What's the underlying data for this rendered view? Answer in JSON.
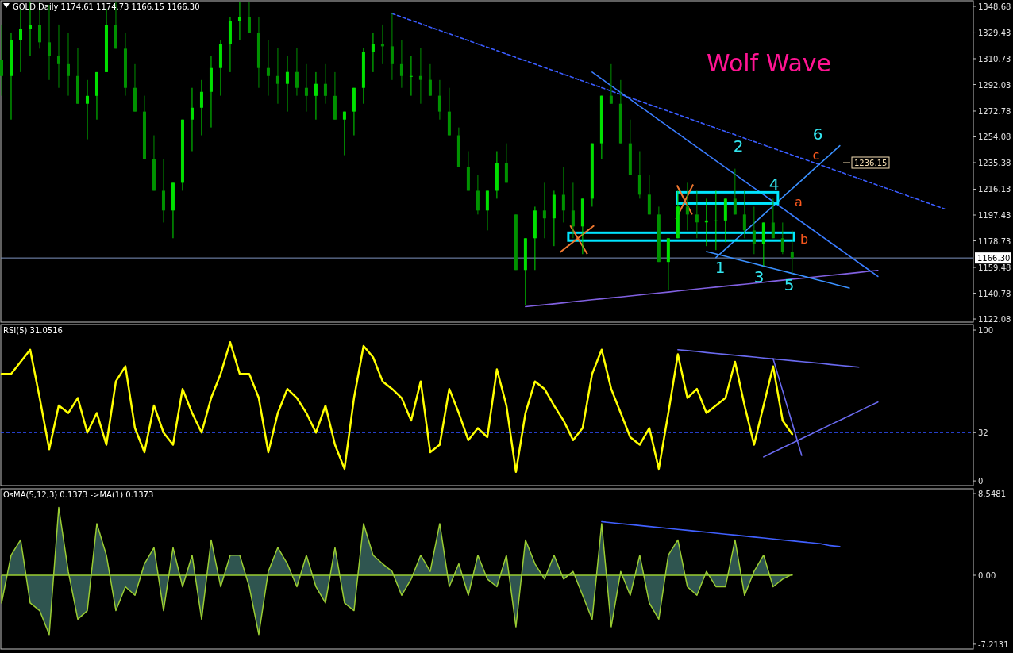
{
  "chart_data": [
    {
      "type": "candlestick",
      "title": "GOLD,Daily  1174.61 1174.73 1166.15 1166.30",
      "colors": [
        "#009200",
        "#00e000",
        "#00e000",
        "#00e000",
        "#009200",
        "#009200",
        "#009200",
        "#009200",
        "#009200",
        "#00e000",
        "#00e000",
        "#00e000",
        "#009200",
        "#009200",
        "#009200",
        "#009200",
        "#009200",
        "#009200",
        "#00e000",
        "#00e000",
        "#00e000",
        "#00e000",
        "#00e000",
        "#00e000",
        "#00e000",
        "#00e000",
        "#009200",
        "#009200",
        "#009200",
        "#009200",
        "#00e000",
        "#009200",
        "#009200",
        "#00e000",
        "#009200",
        "#009200",
        "#00e000",
        "#00e000",
        "#00e000",
        "#00e000",
        "#009200",
        "#009200",
        "#009200",
        "#00e000",
        "#009200",
        "#009200",
        "#009200",
        "#009200",
        "#009200",
        "#009200",
        "#009200",
        "#00e000",
        "#00e000",
        "#009200",
        "#009200",
        "#00e000",
        "#00e000",
        "#009200",
        "#00e000",
        "#009200",
        "#009200",
        "#00e000",
        "#00e000",
        "#00e000",
        "#009200",
        "#009200",
        "#009200",
        "#009200",
        "#009200",
        "#009200",
        "#00e000",
        "#00e000",
        "#009200",
        "#009200",
        "#00e000",
        "#00e000",
        "#00e000",
        "#009200",
        "#009200",
        "#009200",
        "#00e000",
        "#009200",
        "#009200",
        "#009200",
        null,
        null,
        null,
        null,
        null,
        null,
        null,
        null,
        null,
        null,
        null,
        null,
        null,
        null,
        null,
        null
      ],
      "tick_labels": "y",
      "ylim": [
        1119.8,
        1352.7
      ],
      "yticks": [
        1122.08,
        1140.78,
        1159.48,
        1178.73,
        1197.43,
        1216.13,
        1235.38,
        1254.08,
        1272.78,
        1292.03,
        1310.73,
        1329.43,
        1348.68
      ],
      "categories": [
        null,
        null,
        null,
        null,
        null,
        null,
        null,
        null,
        null,
        null,
        null,
        null,
        null,
        null,
        null,
        null,
        null,
        null,
        null,
        null,
        null,
        null,
        null,
        null,
        null,
        null,
        null,
        null,
        null,
        null,
        null,
        null,
        null,
        null,
        null,
        null,
        null,
        null,
        null,
        null,
        null,
        null,
        null,
        null,
        null,
        null,
        null,
        null,
        null,
        null,
        null,
        null,
        null,
        null,
        null,
        null,
        null,
        null,
        null,
        null,
        null,
        null,
        null,
        null,
        null,
        null,
        null,
        null,
        null,
        null,
        null,
        null,
        null,
        null,
        null,
        null,
        null,
        null,
        null,
        null,
        null,
        null,
        null,
        null,
        null,
        null,
        null,
        null,
        null,
        null,
        null,
        null,
        null,
        null,
        null,
        null,
        null,
        null,
        null,
        null
      ],
      "ohlc": [
        [
          1310,
          1335.5,
          1283.9,
          1298.2
        ],
        [
          1298.2,
          1329.7,
          1266.6,
          1324
        ],
        [
          1324,
          1347,
          1301,
          1332.3
        ],
        [
          1332.3,
          1352,
          1312.5,
          1335
        ],
        [
          1335,
          1352,
          1318,
          1322.6
        ],
        [
          1322.6,
          1349.8,
          1295.3,
          1312.6
        ],
        [
          1312.6,
          1335.5,
          1289.6,
          1306.8
        ],
        [
          1306.8,
          1329.7,
          1283.9,
          1298.2
        ],
        [
          1298.2,
          1318.3,
          1278.1,
          1278.1
        ],
        [
          1278.1,
          1295.3,
          1252.3,
          1283.8
        ],
        [
          1283.8,
          1301,
          1266.6,
          1301
        ],
        [
          1301,
          1347,
          1301,
          1335
        ],
        [
          1335,
          1352,
          1318,
          1318
        ],
        [
          1318,
          1329.7,
          1283.9,
          1289.6
        ],
        [
          1289.6,
          1306.8,
          1272.4,
          1272.4
        ],
        [
          1272.4,
          1283.9,
          1238,
          1238
        ],
        [
          1238,
          1255.2,
          1215,
          1215
        ],
        [
          1215,
          1238,
          1192,
          1200.7
        ],
        [
          1200.7,
          1220.8,
          1180.6,
          1220.8
        ],
        [
          1220.8,
          1266.6,
          1215,
          1266.6
        ],
        [
          1266.6,
          1289.6,
          1243.7,
          1275.2
        ],
        [
          1275.2,
          1295.3,
          1255.2,
          1286.7
        ],
        [
          1286.7,
          1312.5,
          1260.9,
          1304
        ],
        [
          1304,
          1324,
          1283.9,
          1321.1
        ],
        [
          1321.1,
          1341.2,
          1301,
          1338
        ],
        [
          1338,
          1352,
          1324,
          1340.9
        ],
        [
          1340.9,
          1352,
          1329.7,
          1329.7
        ],
        [
          1329.7,
          1341.2,
          1289.6,
          1304
        ],
        [
          1304,
          1324,
          1283.9,
          1298.2
        ],
        [
          1298.2,
          1318.3,
          1278.1,
          1292.5
        ],
        [
          1292.5,
          1312.5,
          1272.4,
          1301.1
        ],
        [
          1301.1,
          1318.3,
          1283.9,
          1289.6
        ],
        [
          1289.6,
          1306.8,
          1272.4,
          1283.8
        ],
        [
          1283.8,
          1301,
          1266.6,
          1292.5
        ],
        [
          1292.5,
          1306.8,
          1278.1,
          1283.8
        ],
        [
          1283.8,
          1301,
          1266.6,
          1266.6
        ],
        [
          1266.6,
          1272.4,
          1240.8,
          1272.4
        ],
        [
          1272.4,
          1289.6,
          1255.2,
          1289.6
        ],
        [
          1289.6,
          1318.3,
          1278.1,
          1315.4
        ],
        [
          1315.4,
          1329.7,
          1301,
          1321.2
        ],
        [
          1321.2,
          1335.5,
          1306.8,
          1319.7
        ],
        [
          1319.7,
          1344.1,
          1295.3,
          1306.8
        ],
        [
          1306.8,
          1324,
          1289.6,
          1298.2
        ],
        [
          1298.2,
          1312.5,
          1283.9,
          1298.2
        ],
        [
          1298.2,
          1318.3,
          1278.1,
          1295.4
        ],
        [
          1295.4,
          1306.8,
          1283.9,
          1283.9
        ],
        [
          1283.9,
          1295.3,
          1266.6,
          1272.4
        ],
        [
          1272.4,
          1289.6,
          1255.2,
          1255.2
        ],
        [
          1255.2,
          1260.9,
          1232.2,
          1232.2
        ],
        [
          1232.2,
          1243.7,
          1215,
          1215
        ],
        [
          1215,
          1226.5,
          1197.8,
          1200.7
        ],
        [
          1200.7,
          1215,
          1186.3,
          1215
        ],
        [
          1215,
          1243.7,
          1209.3,
          1235.1
        ],
        [
          1235.1,
          1249.4,
          1220.8,
          1220.8
        ],
        [
          1197.8,
          1197.8,
          1157.6,
          1157.6
        ],
        [
          1157.6,
          1180.6,
          1131.8,
          1180.6
        ],
        [
          1180.6,
          1203.5,
          1157.6,
          1200.7
        ],
        [
          1200.7,
          1220.8,
          1180.6,
          1195
        ],
        [
          1195,
          1215,
          1174.9,
          1212.1
        ],
        [
          1212.1,
          1232.2,
          1192,
          1200.7
        ],
        [
          1200.7,
          1220.8,
          1180.6,
          1189.2
        ],
        [
          1189.2,
          1209.3,
          1169.1,
          1209.3
        ],
        [
          1209.3,
          1249.4,
          1203.5,
          1249.4
        ],
        [
          1249.4,
          1283.9,
          1238,
          1283.9
        ],
        [
          1283.9,
          1306.8,
          1278.1,
          1278.1
        ],
        [
          1278.1,
          1295.3,
          1249.4,
          1249.4
        ],
        [
          1249.4,
          1266.6,
          1226.5,
          1226.5
        ],
        [
          1226.5,
          1243.7,
          1209.3,
          1212.2
        ],
        [
          1212.2,
          1226.5,
          1197.8,
          1197.8
        ],
        [
          1197.8,
          1203.5,
          1163.4,
          1163.4
        ],
        [
          1163.4,
          1180.6,
          1143.3,
          1180.6
        ],
        [
          1180.6,
          1215,
          1180.6,
          1203.6
        ],
        [
          1203.6,
          1220.8,
          1186.3,
          1197.8
        ],
        [
          1197.8,
          1215,
          1180.6,
          1192.1
        ],
        [
          1192.1,
          1209.3,
          1174.9,
          1193.5
        ],
        [
          1193.5,
          1215,
          1172,
          1193.5
        ],
        [
          1193.5,
          1209.3,
          1177.7,
          1209.3
        ],
        [
          1209.3,
          1231,
          1197.8,
          1197.8
        ],
        [
          1197.8,
          1215,
          1180.6,
          1186.3
        ],
        [
          1186.3,
          1203.5,
          1169.1,
          1176.3
        ],
        [
          1176.3,
          1192,
          1160.5,
          1192
        ],
        [
          1192,
          1209.3,
          1180.6,
          1180.6
        ],
        [
          1180.6,
          1192,
          1169.1,
          1170.6
        ],
        [
          1170.6,
          1186.3,
          1154.8,
          1166.3
        ],
        null,
        null,
        null,
        null,
        null,
        null,
        null,
        null,
        null,
        null,
        null,
        null,
        null,
        null,
        null,
        null
      ],
      "series": [
        {
          "type": "line",
          "color": "#3a5cff",
          "line_style": "dashed",
          "values": [
            null,
            null,
            null,
            null,
            null,
            null,
            null,
            null,
            null,
            null,
            null,
            null,
            null,
            null,
            null,
            null,
            null,
            null,
            null,
            null,
            null,
            null,
            null,
            null,
            null,
            null,
            null,
            null,
            null,
            null,
            null,
            null,
            null,
            null,
            null,
            null,
            null,
            null,
            null,
            null,
            null,
            1343.4,
            1341.0,
            1338.5,
            1336.1,
            1333.6,
            1331.2,
            1328.8,
            1326.3,
            1323.9,
            1321.4,
            1319.0,
            1316.6,
            1314.1,
            1311.7,
            1309.3,
            1306.8,
            1304.4,
            1301.9,
            1299.5,
            1297.1,
            1294.6,
            1292.2,
            1289.7,
            1287.3,
            1284.9,
            1282.4,
            1280.0,
            1277.5,
            1275.1,
            1272.7,
            1270.2,
            1267.8,
            1265.3,
            1262.9,
            1260.5,
            1258.0,
            1255.6,
            1253.1,
            1250.7,
            1248.3,
            1245.8,
            1243.4,
            1240.9,
            1238.5,
            1236.1,
            1233.6,
            1231.2,
            1228.8,
            1226.3,
            1223.9,
            1221.4,
            1219.0,
            1216.6,
            1214.1,
            1211.7,
            1209.2,
            1206.8,
            1204.4,
            1201.9
          ]
        },
        {
          "type": "line",
          "color": "#3a7cff",
          "values": [
            null,
            null,
            null,
            null,
            null,
            null,
            null,
            null,
            null,
            null,
            null,
            null,
            null,
            null,
            null,
            null,
            null,
            null,
            null,
            null,
            null,
            null,
            null,
            null,
            null,
            null,
            null,
            null,
            null,
            null,
            null,
            null,
            null,
            null,
            null,
            null,
            null,
            null,
            null,
            null,
            null,
            null,
            null,
            null,
            null,
            null,
            null,
            null,
            null,
            null,
            null,
            null,
            null,
            null,
            null,
            null,
            null,
            null,
            null,
            null,
            null,
            null,
            1301.0,
            1296.1,
            1291.1,
            1286.2,
            1281.3,
            1276.3,
            1271.4,
            1266.4,
            1261.5,
            1256.6,
            1251.6,
            1246.7,
            1241.8,
            1236.8,
            1231.9,
            1227.0,
            1222.0,
            1217.1,
            1212.2,
            1207.2,
            1202.3,
            1197.3,
            1192.4,
            1187.5,
            1182.5,
            1177.6,
            1172.7,
            1167.7,
            1162.8,
            1157.9,
            1152.9,
            null,
            null,
            null,
            null,
            null,
            null,
            null
          ]
        },
        {
          "type": "line",
          "color": "#8060e0",
          "values": [
            null,
            null,
            null,
            null,
            null,
            null,
            null,
            null,
            null,
            null,
            null,
            null,
            null,
            null,
            null,
            null,
            null,
            null,
            null,
            null,
            null,
            null,
            null,
            null,
            null,
            null,
            null,
            null,
            null,
            null,
            null,
            null,
            null,
            null,
            null,
            null,
            null,
            null,
            null,
            null,
            null,
            null,
            null,
            null,
            null,
            null,
            null,
            null,
            null,
            null,
            null,
            null,
            null,
            null,
            null,
            1131.0,
            1131.7,
            1132.4,
            1133.1,
            1133.8,
            1134.6,
            1135.3,
            1136.0,
            1136.7,
            1137.4,
            1138.1,
            1138.8,
            1139.5,
            1140.2,
            1140.9,
            1141.6,
            1142.4,
            1143.1,
            1143.8,
            1144.5,
            1145.2,
            1145.9,
            1146.6,
            1147.3,
            1148.0,
            1148.7,
            1149.5,
            1150.2,
            1150.9,
            1151.6,
            1152.3,
            1153.0,
            1153.7,
            1154.4,
            1155.1,
            1155.8,
            1156.6,
            1157.3,
            null,
            null,
            null,
            null,
            null,
            null,
            null
          ]
        },
        {
          "type": "line",
          "color": "#3a90ff",
          "values": [
            null,
            null,
            null,
            null,
            null,
            null,
            null,
            null,
            null,
            null,
            null,
            null,
            null,
            null,
            null,
            null,
            null,
            null,
            null,
            null,
            null,
            null,
            null,
            null,
            null,
            null,
            null,
            null,
            null,
            null,
            null,
            null,
            null,
            null,
            null,
            null,
            null,
            null,
            null,
            null,
            null,
            null,
            null,
            null,
            null,
            null,
            null,
            null,
            null,
            null,
            null,
            null,
            null,
            null,
            null,
            null,
            null,
            null,
            null,
            null,
            null,
            null,
            null,
            null,
            null,
            null,
            null,
            null,
            null,
            null,
            null,
            null,
            null,
            null,
            1171.0,
            1169.2,
            1167.5,
            1165.7,
            1163.9,
            1162.2,
            1160.4,
            1158.6,
            1156.9,
            1155.1,
            1153.4,
            1151.6,
            1149.8,
            1148.1,
            1146.3,
            1144.5,
            null,
            null,
            null,
            null,
            null,
            null,
            null,
            null,
            null,
            null
          ]
        },
        {
          "type": "line",
          "color": "#3a90ff",
          "values": [
            null,
            null,
            null,
            null,
            null,
            null,
            null,
            null,
            null,
            null,
            null,
            null,
            null,
            null,
            null,
            null,
            null,
            null,
            null,
            null,
            null,
            null,
            null,
            null,
            null,
            null,
            null,
            null,
            null,
            null,
            null,
            null,
            null,
            null,
            null,
            null,
            null,
            null,
            null,
            null,
            null,
            null,
            null,
            null,
            null,
            null,
            null,
            null,
            null,
            null,
            null,
            null,
            null,
            null,
            null,
            null,
            null,
            null,
            null,
            null,
            null,
            null,
            null,
            null,
            null,
            null,
            null,
            null,
            null,
            null,
            null,
            null,
            null,
            null,
            null,
            1166.6,
            1172.8,
            1179.1,
            1185.3,
            1191.5,
            1197.8,
            1204.0,
            1210.3,
            1216.5,
            1222.7,
            1229.0,
            1235.2,
            1241.4,
            1247.7,
            null,
            null,
            null,
            null,
            null,
            null,
            null,
            null,
            null,
            null,
            null
          ]
        }
      ],
      "ref_lines": [
        {
          "axis": "y",
          "value": 1166.3,
          "label": "1166.30",
          "color": "#7f93c0"
        }
      ],
      "annotations": [
        "Wolf Wave",
        "1",
        "2",
        "3",
        "4",
        "5",
        "6",
        "a",
        "b",
        "c",
        "1236.15"
      ]
    },
    {
      "type": "line",
      "title": "RSI(5) 31.0516",
      "color": "#ffff00",
      "tick_labels": "y",
      "ylim": [
        -3.1,
        103.7
      ],
      "yticks": [
        0,
        32,
        100
      ],
      "categories": [
        null,
        null,
        null,
        null,
        null,
        null,
        null,
        null,
        null,
        null,
        null,
        null,
        null,
        null,
        null,
        null,
        null,
        null,
        null,
        null,
        null,
        null,
        null,
        null,
        null,
        null,
        null,
        null,
        null,
        null,
        null,
        null,
        null,
        null,
        null,
        null,
        null,
        null,
        null,
        null,
        null,
        null,
        null,
        null,
        null,
        null,
        null,
        null,
        null,
        null,
        null,
        null,
        null,
        null,
        null,
        null,
        null,
        null,
        null,
        null,
        null,
        null,
        null,
        null,
        null,
        null,
        null,
        null,
        null,
        null,
        null,
        null,
        null,
        null,
        null,
        null,
        null,
        null,
        null,
        null,
        null,
        null,
        null,
        null,
        null,
        null,
        null,
        null,
        null,
        null,
        null,
        null,
        null,
        null,
        null,
        null,
        null,
        null,
        null,
        null
      ],
      "values": [
        71,
        71,
        79,
        87,
        55,
        21,
        50,
        45,
        55,
        32,
        45,
        24,
        66,
        76,
        35,
        19,
        50,
        32,
        24,
        61,
        45,
        32,
        55,
        71,
        92,
        71,
        71,
        55,
        19,
        45,
        61,
        55,
        45,
        32,
        50,
        24,
        8,
        55,
        89.5,
        82,
        66,
        61,
        55,
        40,
        66,
        19,
        24,
        61,
        45,
        27,
        35,
        29,
        74,
        50,
        6,
        45,
        66,
        61,
        50,
        40,
        27,
        35,
        71,
        87,
        61,
        45,
        29,
        24,
        35,
        8,
        45,
        84,
        55,
        61,
        45,
        50,
        55,
        79,
        50,
        24,
        50,
        76,
        40,
        31,
        null,
        null,
        null,
        null,
        null,
        null,
        null,
        null,
        null,
        null,
        null,
        null,
        null,
        null,
        null,
        null
      ],
      "series": [
        {
          "type": "line",
          "color": "#6a6af0",
          "values": [
            null,
            null,
            null,
            null,
            null,
            null,
            null,
            null,
            null,
            null,
            null,
            null,
            null,
            null,
            null,
            null,
            null,
            null,
            null,
            null,
            null,
            null,
            null,
            null,
            null,
            null,
            null,
            null,
            null,
            null,
            null,
            null,
            null,
            null,
            null,
            null,
            null,
            null,
            null,
            null,
            null,
            null,
            null,
            null,
            null,
            null,
            null,
            null,
            null,
            null,
            null,
            null,
            null,
            null,
            null,
            null,
            null,
            null,
            null,
            null,
            null,
            null,
            null,
            null,
            null,
            null,
            null,
            null,
            null,
            null,
            null,
            87.0,
            86.4,
            85.8,
            85.1,
            84.5,
            83.9,
            83.3,
            82.7,
            82.1,
            81.5,
            80.9,
            80.3,
            79.7,
            79.1,
            78.5,
            77.9,
            77.2,
            76.6,
            76.0,
            75.4,
            null,
            null,
            null,
            null,
            null,
            null,
            null,
            null,
            null
          ]
        },
        {
          "type": "line",
          "color": "#6a6af0",
          "values": [
            null,
            null,
            null,
            null,
            null,
            null,
            null,
            null,
            null,
            null,
            null,
            null,
            null,
            null,
            null,
            null,
            null,
            null,
            null,
            null,
            null,
            null,
            null,
            null,
            null,
            null,
            null,
            null,
            null,
            null,
            null,
            null,
            null,
            null,
            null,
            null,
            null,
            null,
            null,
            null,
            null,
            null,
            null,
            null,
            null,
            null,
            null,
            null,
            null,
            null,
            null,
            null,
            null,
            null,
            null,
            null,
            null,
            null,
            null,
            null,
            null,
            null,
            null,
            null,
            null,
            null,
            null,
            null,
            null,
            null,
            null,
            null,
            null,
            null,
            null,
            null,
            null,
            null,
            null,
            null,
            null,
            81.1,
            59.7,
            38.3,
            16.9,
            null,
            null,
            null,
            null,
            null,
            null,
            null,
            null,
            null,
            null,
            null,
            null,
            null,
            null,
            null
          ]
        },
        {
          "type": "line",
          "color": "#6a6af0",
          "values": [
            null,
            null,
            null,
            null,
            null,
            null,
            null,
            null,
            null,
            null,
            null,
            null,
            null,
            null,
            null,
            null,
            null,
            null,
            null,
            null,
            null,
            null,
            null,
            null,
            null,
            null,
            null,
            null,
            null,
            null,
            null,
            null,
            null,
            null,
            null,
            null,
            null,
            null,
            null,
            null,
            null,
            null,
            null,
            null,
            null,
            null,
            null,
            null,
            null,
            null,
            null,
            null,
            null,
            null,
            null,
            null,
            null,
            null,
            null,
            null,
            null,
            null,
            null,
            null,
            null,
            null,
            null,
            null,
            null,
            null,
            null,
            null,
            null,
            null,
            null,
            null,
            null,
            null,
            null,
            null,
            15.9,
            19.0,
            22.0,
            25.0,
            28.1,
            31.1,
            34.1,
            37.2,
            40.2,
            43.2,
            46.3,
            49.3,
            52.3,
            null,
            null,
            null,
            null,
            null,
            null,
            null
          ]
        }
      ],
      "ref_lines": [
        {
          "axis": "y",
          "value": 32,
          "label": null,
          "color": "#3050ff",
          "line_style": "dashed"
        }
      ]
    },
    {
      "type": "area",
      "title": "OsMA(5,12,3) 0.1373  ->MA(1) 0.1373",
      "color": "#9acd32",
      "tick_labels": "y",
      "ylim": [
        -7.72,
        9.05
      ],
      "yticks": [
        {
          "value": -7.2131,
          "label": "-7.2131"
        },
        {
          "value": 0,
          "label": "0.00"
        },
        {
          "value": 8.5481,
          "label": "8.5481"
        }
      ],
      "categories": [
        null,
        null,
        null,
        null,
        null,
        null,
        null,
        null,
        null,
        null,
        null,
        null,
        null,
        null,
        null,
        null,
        null,
        null,
        null,
        null,
        null,
        null,
        null,
        null,
        null,
        null,
        null,
        null,
        null,
        null,
        null,
        null,
        null,
        null,
        null,
        null,
        null,
        null,
        null,
        null,
        null,
        null,
        null,
        null,
        null,
        null,
        null,
        null,
        null,
        null,
        null,
        null,
        null,
        null,
        null,
        null,
        null,
        null,
        null,
        null,
        null,
        null,
        null,
        null,
        null,
        null,
        null,
        null,
        null,
        null,
        null,
        null,
        null,
        null,
        null,
        null,
        null,
        null,
        null,
        null,
        null,
        null,
        null,
        null,
        null,
        null,
        null,
        null,
        null,
        null,
        null,
        null,
        null,
        null,
        null,
        null,
        null,
        null,
        null,
        null
      ],
      "values": [
        -2.9,
        2.1,
        3.7,
        -2.9,
        -3.7,
        -6.2,
        7.1,
        0.4,
        -4.6,
        -3.7,
        5.4,
        2.1,
        -3.7,
        -1.2,
        -2.1,
        1.2,
        2.9,
        -3.7,
        2.9,
        -1.2,
        2.1,
        -4.6,
        3.7,
        -1.2,
        2.1,
        2.1,
        -1.2,
        -6.2,
        0.4,
        2.9,
        1.2,
        -1.2,
        2.1,
        -1.2,
        -2.9,
        2.9,
        -2.9,
        -3.7,
        5.4,
        2.1,
        1.2,
        0.4,
        -2.1,
        -0.4,
        2.1,
        0.4,
        5.4,
        -1.2,
        1.2,
        -2.1,
        2.1,
        -0.4,
        -1.2,
        2.1,
        -5.4,
        3.7,
        1.2,
        -0.4,
        2.1,
        -0.4,
        0.4,
        -2.1,
        -4.6,
        5.4,
        -5.4,
        0.4,
        -2.1,
        2.1,
        -2.9,
        -4.6,
        2.1,
        3.7,
        -1.2,
        -2.1,
        0.4,
        -1.2,
        -1.2,
        3.7,
        -2.1,
        0.4,
        2.1,
        -1.2,
        -0.4,
        0.1,
        null,
        null,
        null,
        null,
        null,
        null,
        null,
        null,
        null,
        null,
        null,
        null,
        null,
        null,
        null,
        null
      ],
      "series": [
        {
          "type": "line",
          "color": "#4060ff",
          "values": [
            null,
            null,
            null,
            null,
            null,
            null,
            null,
            null,
            null,
            null,
            null,
            null,
            null,
            null,
            null,
            null,
            null,
            null,
            null,
            null,
            null,
            null,
            null,
            null,
            null,
            null,
            null,
            null,
            null,
            null,
            null,
            null,
            null,
            null,
            null,
            null,
            null,
            null,
            null,
            null,
            null,
            null,
            null,
            null,
            null,
            null,
            null,
            null,
            null,
            null,
            null,
            null,
            null,
            null,
            null,
            null,
            null,
            null,
            null,
            null,
            null,
            null,
            null,
            5.6,
            5.5,
            5.4,
            5.3,
            5.2,
            5.1,
            5.0,
            4.9,
            4.8,
            4.7,
            4.6,
            4.5,
            4.4,
            4.3,
            4.2,
            4.1,
            4.0,
            3.9,
            3.8,
            3.7,
            3.6,
            3.5,
            3.4,
            3.3,
            3.1,
            3.0,
            null,
            null,
            null,
            null,
            null,
            null,
            null,
            null,
            null,
            null,
            null
          ]
        }
      ]
    }
  ]
}
